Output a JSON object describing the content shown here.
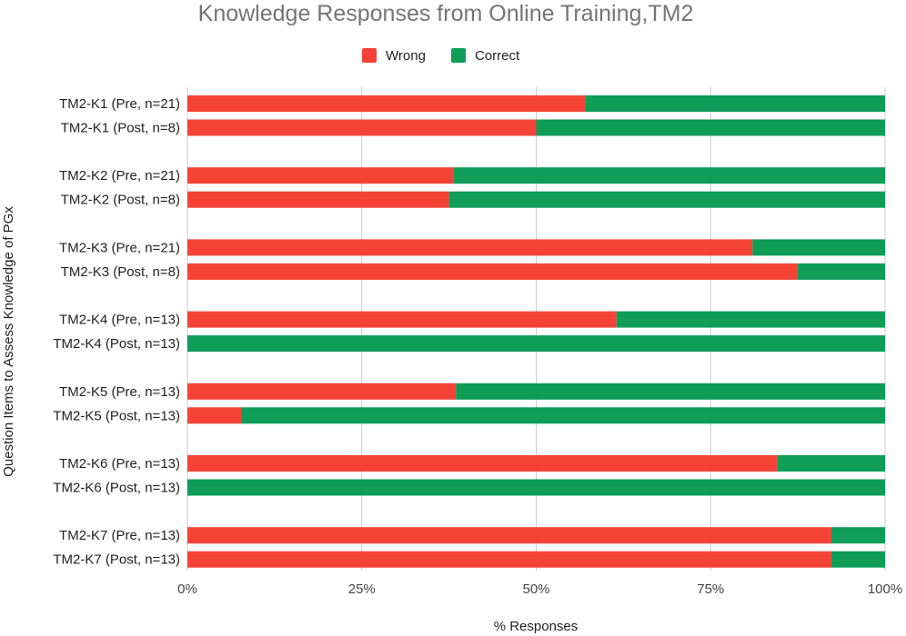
{
  "chart_data": {
    "type": "bar",
    "orientation": "horizontal",
    "stacked": "percent",
    "title": "Knowledge Responses from Online Training,TM2",
    "xlabel": "% Responses",
    "ylabel": "Question Items to Assess Knowledge of PGx",
    "xlim": [
      0,
      100
    ],
    "x_ticks": [
      "0%",
      "25%",
      "50%",
      "75%",
      "100%"
    ],
    "grid": true,
    "legend_position": "top",
    "categories": [
      "TM2-K1 (Pre, n=21)",
      "TM2-K1 (Post, n=8)",
      "TM2-K2 (Pre, n=21)",
      "TM2-K2 (Post, n=8)",
      "TM2-K3 (Pre, n=21)",
      "TM2-K3 (Post, n=8)",
      "TM2-K4 (Pre, n=13)",
      "TM2-K4 (Post, n=13)",
      "TM2-K5 (Pre, n=13)",
      "TM2-K5 (Post, n=13)",
      "TM2-K6 (Pre, n=13)",
      "TM2-K6 (Post, n=13)",
      "TM2-K7 (Pre, n=13)",
      "TM2-K7 (Post, n=13)"
    ],
    "series": [
      {
        "name": "Wrong",
        "color": "#f44336",
        "values": [
          57.1,
          50.0,
          38.1,
          37.5,
          81.0,
          87.5,
          61.5,
          0.0,
          38.5,
          7.7,
          84.6,
          0.0,
          92.3,
          92.3
        ]
      },
      {
        "name": "Correct",
        "color": "#0f9d58",
        "values": [
          42.9,
          50.0,
          61.9,
          62.5,
          19.0,
          12.5,
          38.5,
          100.0,
          61.5,
          92.3,
          15.4,
          100.0,
          7.7,
          7.7
        ]
      }
    ]
  }
}
